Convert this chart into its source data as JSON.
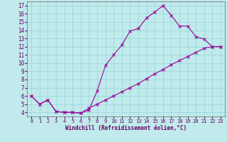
{
  "xlabel": "Windchill (Refroidissement éolien,°C)",
  "bg_color": "#c0eaec",
  "grid_color": "#9dd8da",
  "line_color": "#990099",
  "xlim": [
    -0.5,
    23.5
  ],
  "ylim": [
    3.5,
    17.5
  ],
  "xticks": [
    0,
    1,
    2,
    3,
    4,
    5,
    6,
    7,
    8,
    9,
    10,
    11,
    12,
    13,
    14,
    15,
    16,
    17,
    18,
    19,
    20,
    21,
    22,
    23
  ],
  "yticks": [
    4,
    5,
    6,
    7,
    8,
    9,
    10,
    11,
    12,
    13,
    14,
    15,
    16,
    17
  ],
  "upper_x": [
    0,
    1,
    2,
    3,
    4,
    5,
    6,
    7,
    8,
    9,
    10,
    11,
    12,
    13,
    14,
    15,
    16,
    17,
    18,
    19,
    20,
    21,
    22,
    23
  ],
  "upper_y": [
    6.0,
    5.0,
    5.5,
    4.1,
    4.0,
    4.0,
    3.9,
    4.3,
    6.6,
    9.7,
    11.0,
    12.2,
    13.9,
    14.2,
    15.5,
    16.2,
    17.0,
    15.8,
    14.5,
    14.5,
    13.2,
    12.9,
    12.0,
    12.0
  ],
  "lower_x": [
    0,
    1,
    2,
    3,
    4,
    5,
    6,
    7,
    8,
    9,
    10,
    11,
    12,
    13,
    14,
    15,
    16,
    17,
    18,
    19,
    20,
    21,
    22,
    23
  ],
  "lower_y": [
    6.0,
    5.0,
    5.5,
    4.1,
    4.0,
    4.0,
    3.9,
    4.5,
    5.0,
    5.5,
    6.0,
    6.5,
    7.0,
    7.5,
    8.1,
    8.7,
    9.2,
    9.8,
    10.3,
    10.8,
    11.3,
    11.8,
    12.0,
    12.0
  ]
}
